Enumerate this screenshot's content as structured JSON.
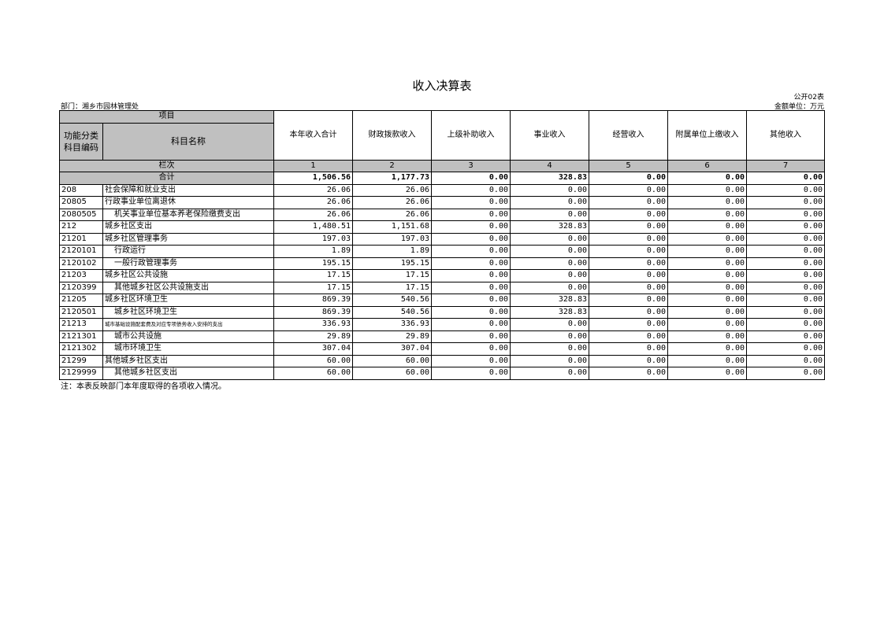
{
  "title": "收入决算表",
  "form_no": "公开02表",
  "department": "部门：湘乡市园林管理处",
  "unit": "金额单位：万元",
  "header": {
    "item": "项目",
    "code": "功能分类科目编码",
    "name": "科目名称",
    "columns": [
      "本年收入合计",
      "财政拨款收入",
      "上级补助收入",
      "事业收入",
      "经营收入",
      "附属单位上缴收入",
      "其他收入"
    ],
    "row_index_label": "栏次",
    "row_index": [
      "1",
      "2",
      "3",
      "4",
      "5",
      "6",
      "7"
    ]
  },
  "total": {
    "label": "合计",
    "values": [
      "1,506.56",
      "1,177.73",
      "0.00",
      "328.83",
      "0.00",
      "0.00",
      "0.00"
    ]
  },
  "rows": [
    {
      "code": "208",
      "name": "社会保障和就业支出",
      "indent": false,
      "values": [
        "26.06",
        "26.06",
        "0.00",
        "0.00",
        "0.00",
        "0.00",
        "0.00"
      ]
    },
    {
      "code": "20805",
      "name": "行政事业单位离退休",
      "indent": false,
      "values": [
        "26.06",
        "26.06",
        "0.00",
        "0.00",
        "0.00",
        "0.00",
        "0.00"
      ]
    },
    {
      "code": "2080505",
      "name": "机关事业单位基本养老保险缴费支出",
      "indent": true,
      "values": [
        "26.06",
        "26.06",
        "0.00",
        "0.00",
        "0.00",
        "0.00",
        "0.00"
      ]
    },
    {
      "code": "212",
      "name": "城乡社区支出",
      "indent": false,
      "values": [
        "1,480.51",
        "1,151.68",
        "0.00",
        "328.83",
        "0.00",
        "0.00",
        "0.00"
      ]
    },
    {
      "code": "21201",
      "name": "城乡社区管理事务",
      "indent": false,
      "values": [
        "197.03",
        "197.03",
        "0.00",
        "0.00",
        "0.00",
        "0.00",
        "0.00"
      ]
    },
    {
      "code": "2120101",
      "name": "行政运行",
      "indent": true,
      "values": [
        "1.89",
        "1.89",
        "0.00",
        "0.00",
        "0.00",
        "0.00",
        "0.00"
      ]
    },
    {
      "code": "2120102",
      "name": "一般行政管理事务",
      "indent": true,
      "values": [
        "195.15",
        "195.15",
        "0.00",
        "0.00",
        "0.00",
        "0.00",
        "0.00"
      ]
    },
    {
      "code": "21203",
      "name": "城乡社区公共设施",
      "indent": false,
      "values": [
        "17.15",
        "17.15",
        "0.00",
        "0.00",
        "0.00",
        "0.00",
        "0.00"
      ]
    },
    {
      "code": "2120399",
      "name": "其他城乡社区公共设施支出",
      "indent": true,
      "values": [
        "17.15",
        "17.15",
        "0.00",
        "0.00",
        "0.00",
        "0.00",
        "0.00"
      ]
    },
    {
      "code": "21205",
      "name": "城乡社区环境卫生",
      "indent": false,
      "values": [
        "869.39",
        "540.56",
        "0.00",
        "328.83",
        "0.00",
        "0.00",
        "0.00"
      ]
    },
    {
      "code": "2120501",
      "name": "城乡社区环境卫生",
      "indent": true,
      "values": [
        "869.39",
        "540.56",
        "0.00",
        "328.83",
        "0.00",
        "0.00",
        "0.00"
      ]
    },
    {
      "code": "21213",
      "name": "城市基础设施配套费及对应专项债务收入安排的支出",
      "indent": false,
      "small": true,
      "values": [
        "336.93",
        "336.93",
        "0.00",
        "0.00",
        "0.00",
        "0.00",
        "0.00"
      ]
    },
    {
      "code": "2121301",
      "name": "城市公共设施",
      "indent": true,
      "values": [
        "29.89",
        "29.89",
        "0.00",
        "0.00",
        "0.00",
        "0.00",
        "0.00"
      ]
    },
    {
      "code": "2121302",
      "name": "城市环境卫生",
      "indent": true,
      "values": [
        "307.04",
        "307.04",
        "0.00",
        "0.00",
        "0.00",
        "0.00",
        "0.00"
      ]
    },
    {
      "code": "21299",
      "name": "其他城乡社区支出",
      "indent": false,
      "values": [
        "60.00",
        "60.00",
        "0.00",
        "0.00",
        "0.00",
        "0.00",
        "0.00"
      ]
    },
    {
      "code": "2129999",
      "name": "其他城乡社区支出",
      "indent": true,
      "values": [
        "60.00",
        "60.00",
        "0.00",
        "0.00",
        "0.00",
        "0.00",
        "0.00"
      ]
    }
  ],
  "note": "注：本表反映部门本年度取得的各项收入情况。"
}
